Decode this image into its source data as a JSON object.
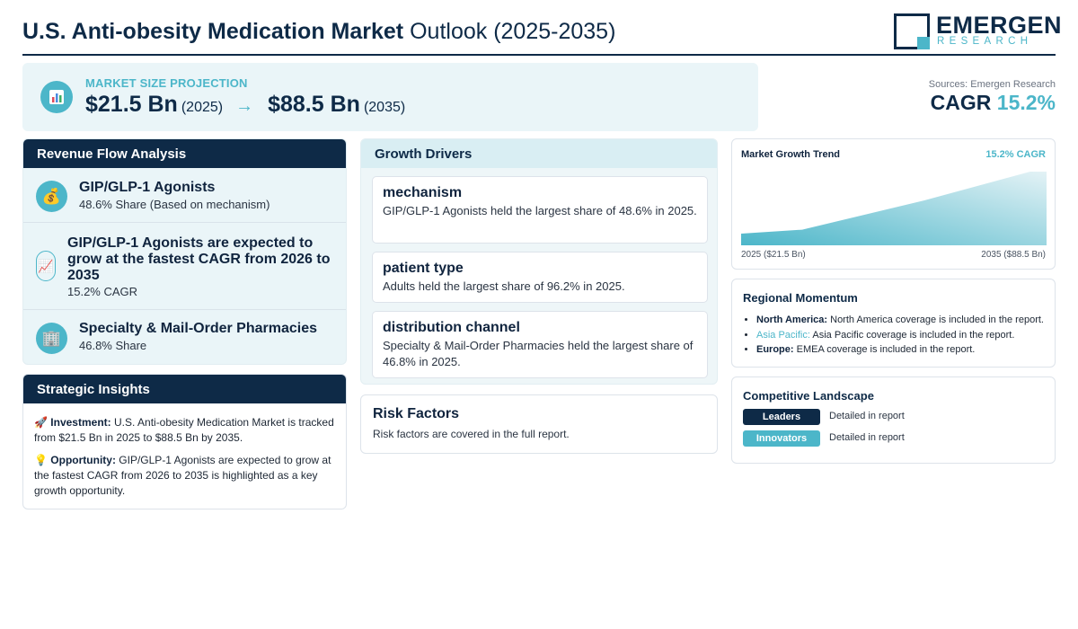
{
  "header": {
    "title_bold": "U.S. Anti-obesity Medication Market",
    "title_light": "Outlook (2025-2035)",
    "logo_main": "EMERGEN",
    "logo_sub": "RESEARCH"
  },
  "projection": {
    "icon": "bar-chart-icon",
    "label": "MARKET SIZE PROJECTION",
    "start_value": "$21.5 Bn",
    "start_year": "(2025)",
    "arrow": "→",
    "end_value": "$88.5 Bn",
    "end_year": "(2035)"
  },
  "cagr": {
    "source": "Sources: Emergen Research",
    "label": "CAGR",
    "value": "15.2%"
  },
  "revenue_flow": {
    "title": "Revenue Flow Analysis",
    "items": [
      {
        "icon": "money-bag-icon",
        "title": "GIP/GLP-1 Agonists",
        "subtitle": "48.6% Share (Based on mechanism)"
      },
      {
        "icon": "chart-increasing-icon",
        "title": "GIP/GLP-1 Agonists are expected to grow at the fastest CAGR from 2026 to 2035",
        "subtitle": "15.2% CAGR"
      },
      {
        "icon": "building-icon",
        "title": "Specialty & Mail-Order Pharmacies",
        "subtitle": "46.8% Share"
      }
    ]
  },
  "strategic_insights": {
    "title": "Strategic Insights",
    "items": [
      {
        "icon": "rocket-icon",
        "label": "Investment:",
        "text": "U.S. Anti-obesity Medication Market is tracked from $21.5 Bn in 2025 to $88.5 Bn by 2035."
      },
      {
        "icon": "lightbulb-icon",
        "label": "Opportunity:",
        "text": "GIP/GLP-1 Agonists are expected to grow at the fastest CAGR from 2026 to 2035 is highlighted as a key growth opportunity."
      }
    ]
  },
  "growth_drivers": {
    "title": "Growth Drivers",
    "items": [
      {
        "title": "mechanism",
        "text": "GIP/GLP-1 Agonists held the largest share of 48.6% in 2025."
      },
      {
        "title": "patient type",
        "text": "Adults held the largest share of 96.2% in 2025."
      },
      {
        "title": "distribution channel",
        "text": "Specialty & Mail-Order Pharmacies held the largest share of 46.8% in 2025."
      }
    ]
  },
  "risk_factors": {
    "title": "Risk Factors",
    "text": "Risk factors are covered in the full report."
  },
  "chart_data": {
    "type": "area",
    "title": "Market Growth Trend",
    "badge": "15.2% CAGR",
    "x": [
      2025,
      2027,
      2031,
      2035
    ],
    "values": [
      21.5,
      25.5,
      55.0,
      88.5
    ],
    "xlabel_start": "2025 ($21.5 Bn)",
    "xlabel_end": "2035 ($88.5 Bn)",
    "ylim": [
      0,
      88.5
    ],
    "grid": false,
    "colors": {
      "top": "#4cb6c9",
      "fade": "#e8f4f7"
    }
  },
  "regional_momentum": {
    "title": "Regional Momentum",
    "items": [
      {
        "region": "North America:",
        "text": "North America coverage is included in the report."
      },
      {
        "region": "Asia Pacific:",
        "text": "Asia Pacific coverage is included in the report."
      },
      {
        "region": "Europe:",
        "text": "EMEA coverage is included in the report."
      }
    ]
  },
  "competitive_landscape": {
    "title": "Competitive Landscape",
    "rows": [
      {
        "badge": "Leaders",
        "text": "Detailed in report",
        "color": "#0e2a47"
      },
      {
        "badge": "Innovators",
        "text": "Detailed in report",
        "color": "#4cb6c9"
      }
    ]
  },
  "colors": {
    "navy": "#0e2a47",
    "teal": "#4cb6c9",
    "panel": "#eaf5f8"
  }
}
